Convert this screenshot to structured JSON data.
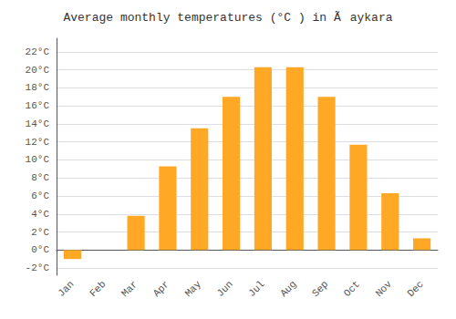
{
  "chart_data": {
    "type": "bar",
    "title": "Average monthly temperatures (°C ) in Ãaykara",
    "categories": [
      "Jan",
      "Feb",
      "Mar",
      "Apr",
      "May",
      "Jun",
      "Jul",
      "Aug",
      "Sep",
      "Oct",
      "Nov",
      "Dec"
    ],
    "values": [
      -1.0,
      0.0,
      3.8,
      9.3,
      13.5,
      17.0,
      20.3,
      20.3,
      17.0,
      11.7,
      6.3,
      1.3
    ],
    "color": "#FFA826",
    "ylim": [
      -2.8,
      23.5
    ],
    "yticks": [
      {
        "value": -2,
        "label": "-2°C"
      },
      {
        "value": 0,
        "label": "0°C"
      },
      {
        "value": 2,
        "label": "2°C"
      },
      {
        "value": 4,
        "label": "4°C"
      },
      {
        "value": 6,
        "label": "6°C"
      },
      {
        "value": 8,
        "label": "8°C"
      },
      {
        "value": 10,
        "label": "10°C"
      },
      {
        "value": 12,
        "label": "12°C"
      },
      {
        "value": 14,
        "label": "14°C"
      },
      {
        "value": 16,
        "label": "16°C"
      },
      {
        "value": 18,
        "label": "18°C"
      },
      {
        "value": 20,
        "label": "20°C"
      },
      {
        "value": 22,
        "label": "22°C"
      }
    ],
    "grid": true
  }
}
